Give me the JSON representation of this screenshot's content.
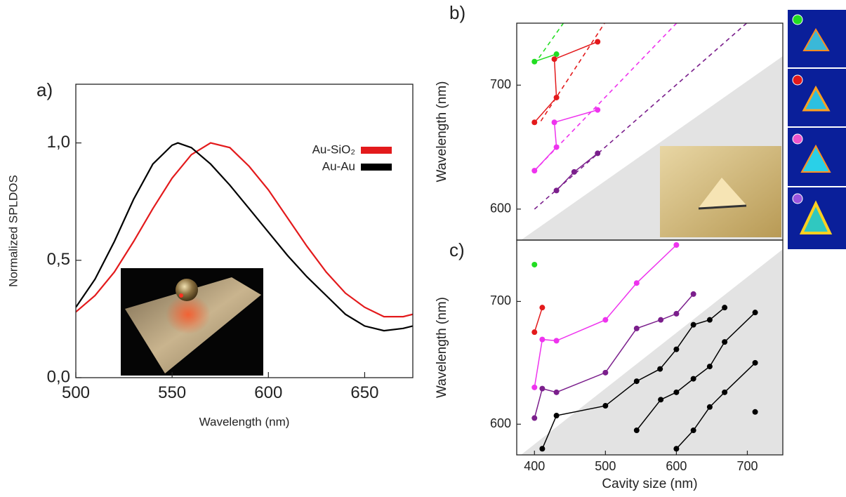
{
  "chart_data": [
    {
      "type": "line",
      "label": "a)",
      "xlabel": "Wavelength (nm)",
      "ylabel": "Normalized SPLDOS",
      "xlim": [
        500,
        675
      ],
      "xticks": [
        500,
        550,
        600,
        650
      ],
      "ylim": [
        0,
        1.25
      ],
      "yticks": [
        {
          "value": 0,
          "label": "0,0"
        },
        {
          "value": 0.5,
          "label": "0,5"
        },
        {
          "value": 1.0,
          "label": "1,0"
        }
      ],
      "legend": "upper right",
      "x": [
        500,
        510,
        520,
        530,
        540,
        550,
        553,
        560,
        570,
        580,
        590,
        600,
        610,
        620,
        630,
        640,
        650,
        660,
        670,
        675
      ],
      "series": [
        {
          "name": "Au-SiO₂",
          "color": "#e31a1c",
          "values": [
            0.28,
            0.35,
            0.45,
            0.58,
            0.72,
            0.85,
            0.88,
            0.95,
            1.0,
            0.98,
            0.9,
            0.8,
            0.68,
            0.56,
            0.45,
            0.36,
            0.3,
            0.26,
            0.26,
            0.27
          ]
        },
        {
          "name": "Au-Au",
          "color": "#000000",
          "values": [
            0.3,
            0.42,
            0.58,
            0.76,
            0.91,
            0.99,
            1.0,
            0.98,
            0.91,
            0.82,
            0.72,
            0.62,
            0.52,
            0.43,
            0.35,
            0.27,
            0.22,
            0.2,
            0.21,
            0.22
          ]
        }
      ]
    },
    {
      "type": "line",
      "label": "b)",
      "ylabel": "Wavelength (nm)",
      "xlim": [
        375,
        750
      ],
      "ylim": [
        575,
        750
      ],
      "yticks": [
        600,
        700
      ],
      "series": [
        {
          "color": "#22dd22",
          "marker": true,
          "x": [
            400,
            431
          ],
          "values": [
            719,
            725
          ]
        },
        {
          "color": "#e31a1c",
          "marker": true,
          "x": [
            400,
            431,
            428,
            489
          ],
          "values": [
            670,
            690,
            721,
            735
          ]
        },
        {
          "color": "#ee33ee",
          "marker": true,
          "x": [
            400,
            431,
            428,
            489
          ],
          "values": [
            631,
            650,
            670,
            680
          ]
        },
        {
          "color": "#7b1f8c",
          "marker": true,
          "x": [
            431,
            456,
            489
          ],
          "values": [
            615,
            630,
            645
          ]
        },
        {
          "color": "#22dd22",
          "dashed": true,
          "x": [
            400,
            442
          ],
          "values": [
            717,
            751
          ]
        },
        {
          "color": "#e31a1c",
          "dashed": true,
          "x": [
            409,
            500
          ],
          "values": [
            671,
            751
          ]
        },
        {
          "color": "#ee33ee",
          "dashed": true,
          "x": [
            400,
            602
          ],
          "values": [
            631,
            751
          ]
        },
        {
          "color": "#7b1f8c",
          "dashed": true,
          "x": [
            400,
            701
          ],
          "values": [
            600,
            751
          ]
        }
      ]
    },
    {
      "type": "line",
      "label": "c)",
      "xlabel": "Cavity size (nm)",
      "ylabel": "Wavelength (nm)",
      "xlim": [
        375,
        750
      ],
      "xticks": [
        400,
        500,
        600,
        700
      ],
      "ylim": [
        575,
        750
      ],
      "yticks": [
        600,
        700
      ],
      "series": [
        {
          "color": "#22dd22",
          "marker": true,
          "x": [
            400
          ],
          "values": [
            730
          ]
        },
        {
          "color": "#e31a1c",
          "marker": true,
          "x": [
            400,
            411
          ],
          "values": [
            675,
            695
          ]
        },
        {
          "color": "#ee33ee",
          "marker": true,
          "x": [
            400,
            411,
            431,
            500,
            544,
            600
          ],
          "values": [
            630,
            669,
            668,
            685,
            715,
            746
          ]
        },
        {
          "color": "#7b1f8c",
          "marker": true,
          "x": [
            400,
            411,
            431,
            500,
            544,
            578,
            600,
            624
          ],
          "values": [
            605,
            629,
            626,
            642,
            678,
            685,
            690,
            706
          ]
        },
        {
          "color": "#000000",
          "marker": true,
          "x": [
            411,
            431,
            500,
            544,
            577,
            600,
            624,
            647,
            668
          ],
          "values": [
            580,
            607,
            615,
            635,
            645,
            661,
            681,
            685,
            695
          ]
        },
        {
          "color": "#000000",
          "marker": true,
          "x": [
            544,
            578,
            600,
            624,
            647,
            668,
            711
          ],
          "values": [
            595,
            620,
            626,
            637,
            647,
            667,
            691
          ]
        },
        {
          "color": "#000000",
          "marker": true,
          "x": [
            600,
            624,
            647,
            668,
            711
          ],
          "values": [
            580,
            595,
            614,
            626,
            650
          ]
        },
        {
          "color": "#000000",
          "marker": true,
          "x": [
            711
          ],
          "values": [
            610
          ]
        }
      ]
    }
  ]
}
